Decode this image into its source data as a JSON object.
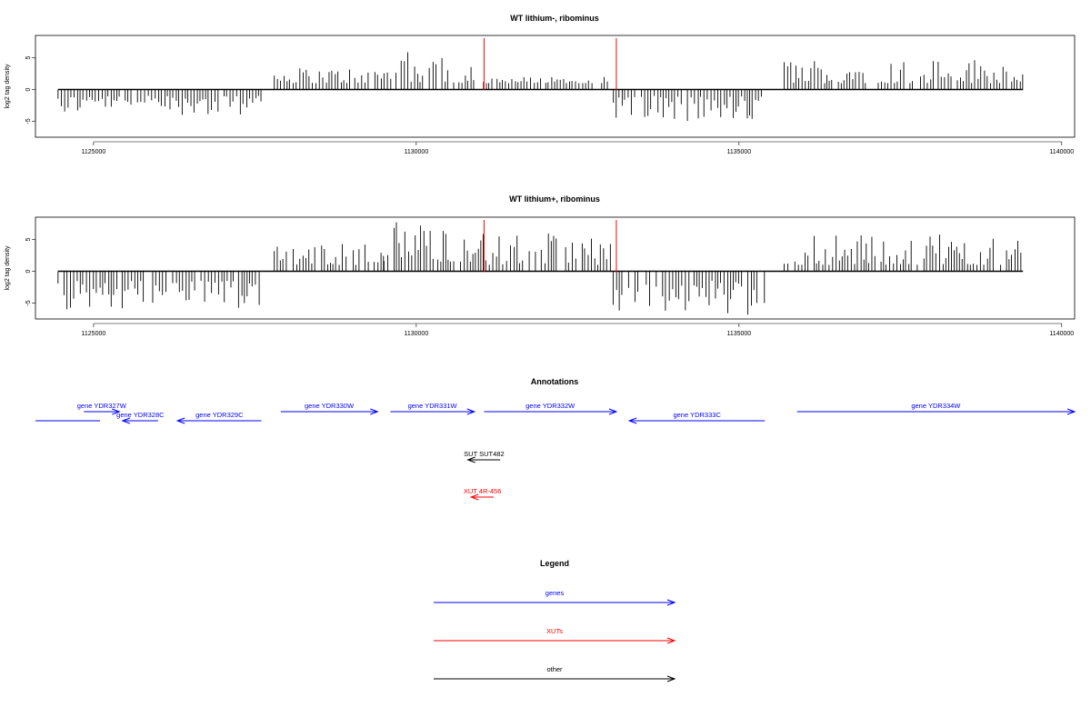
{
  "chart_data": [
    {
      "type": "bar",
      "title": "WT lithium-, ribominus",
      "ylabel": "log2 tag density",
      "xlim": [
        1124100,
        1140200
      ],
      "ylim": [
        -7.5,
        8.5
      ],
      "xticks": [
        "1125000",
        "1130000",
        "1135000",
        "1140000"
      ],
      "yticks": [
        "-5",
        "0",
        "5"
      ],
      "grid": false,
      "data_ranges": [
        {
          "from": 1124450,
          "to": 1127600,
          "sign": -1,
          "min": 1.0,
          "max": 4.0
        },
        {
          "from": 1127800,
          "to": 1129500,
          "sign": 1,
          "min": 1.0,
          "max": 3.5
        },
        {
          "from": 1129500,
          "to": 1130900,
          "sign": 1,
          "min": 1.0,
          "max": 6.0
        },
        {
          "from": 1131000,
          "to": 1133000,
          "sign": 1,
          "min": 1.0,
          "max": 2.0
        },
        {
          "from": 1133000,
          "to": 1135400,
          "sign": -1,
          "min": 1.0,
          "max": 5.0
        },
        {
          "from": 1135700,
          "to": 1139400,
          "sign": 1,
          "min": 1.0,
          "max": 5.0
        }
      ],
      "markers": [
        1131050,
        1133100
      ]
    },
    {
      "type": "bar",
      "title": "WT lithium+, ribominus",
      "ylabel": "log2 tag density",
      "xlim": [
        1124100,
        1140200
      ],
      "ylim": [
        -7.5,
        8.5
      ],
      "xticks": [
        "1125000",
        "1130000",
        "1135000",
        "1140000"
      ],
      "yticks": [
        "-5",
        "0",
        "5"
      ],
      "grid": false,
      "data_ranges": [
        {
          "from": 1124450,
          "to": 1127600,
          "sign": -1,
          "min": 1.5,
          "max": 6.0
        },
        {
          "from": 1127800,
          "to": 1129500,
          "sign": 1,
          "min": 1.0,
          "max": 4.5
        },
        {
          "from": 1129500,
          "to": 1131000,
          "sign": 1,
          "min": 1.5,
          "max": 8.0
        },
        {
          "from": 1131000,
          "to": 1133050,
          "sign": 1,
          "min": 1.0,
          "max": 6.0
        },
        {
          "from": 1133050,
          "to": 1135400,
          "sign": -1,
          "min": 1.5,
          "max": 7.0
        },
        {
          "from": 1135700,
          "to": 1139400,
          "sign": 1,
          "min": 1.0,
          "max": 6.0
        }
      ],
      "markers": [
        1131050,
        1133100
      ]
    }
  ],
  "annotations": {
    "title": "Annotations",
    "genes": [
      {
        "label": "gene YDR327W",
        "from": 1124850,
        "to": 1125400,
        "strand": "+",
        "row": 1,
        "color": "#0000ff"
      },
      {
        "label": "gene YDR328C",
        "from": 1125450,
        "to": 1126000,
        "strand": "-",
        "row": 2,
        "color": "#0000ff"
      },
      {
        "label": "gene YDR329C",
        "from": 1126300,
        "to": 1127600,
        "strand": "-",
        "row": 2,
        "color": "#0000ff"
      },
      {
        "label": "gene YDR330W",
        "from": 1127900,
        "to": 1129400,
        "strand": "+",
        "row": 1,
        "color": "#0000ff"
      },
      {
        "label": "gene YDR331W",
        "from": 1129600,
        "to": 1130900,
        "strand": "+",
        "row": 1,
        "color": "#0000ff"
      },
      {
        "label": "gene YDR332W",
        "from": 1131050,
        "to": 1133100,
        "strand": "+",
        "row": 1,
        "color": "#0000ff"
      },
      {
        "label": "gene YDR333C",
        "from": 1133300,
        "to": 1135400,
        "strand": "-",
        "row": 2,
        "color": "#0000ff"
      },
      {
        "label": "gene YDR334W",
        "from": 1135900,
        "to": 1140200,
        "strand": "+",
        "row": 1,
        "color": "#0000ff"
      },
      {
        "label": "",
        "from": 1124100,
        "to": 1125100,
        "strand": "none",
        "row": 2,
        "color": "#0000ff"
      }
    ],
    "others": [
      {
        "label": "SUT SUT482",
        "from": 1130800,
        "to": 1131300,
        "strand": "-",
        "row": 4,
        "color": "#000000"
      },
      {
        "label": "XUT 4R-456",
        "from": 1130850,
        "to": 1131200,
        "strand": "-",
        "row": 5,
        "color": "#ff0000"
      }
    ]
  },
  "legend": {
    "title": "Legend",
    "items": [
      {
        "label": "genes",
        "color": "#0000ff"
      },
      {
        "label": "XUTs",
        "color": "#ff0000"
      },
      {
        "label": "other",
        "color": "#000000"
      }
    ]
  }
}
